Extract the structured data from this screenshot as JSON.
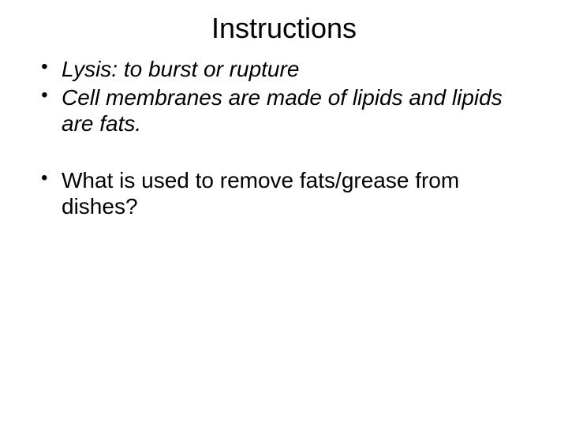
{
  "slide": {
    "title": "Instructions",
    "bullets": [
      {
        "text": "Lysis:  to burst or rupture",
        "italic": true
      },
      {
        "text": "Cell membranes are made of lipids and lipids are fats.",
        "italic": true
      },
      {
        "text": "",
        "spacer": true
      },
      {
        "text": "What is used to remove fats/grease from dishes?",
        "italic": false
      }
    ],
    "title_fontsize": 36,
    "bullet_fontsize": 28,
    "text_color": "#000000",
    "background_color": "#ffffff",
    "font_family": "Arial"
  }
}
